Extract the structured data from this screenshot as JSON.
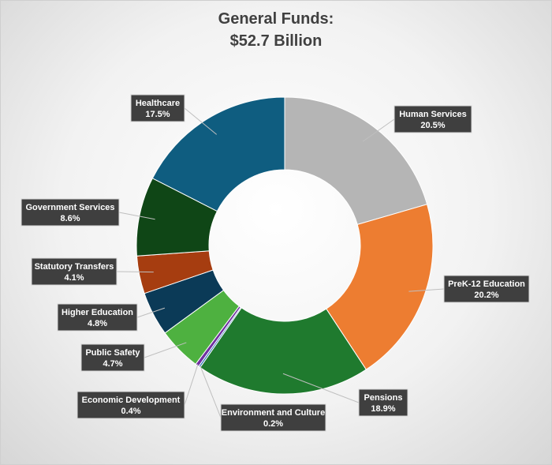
{
  "chart_data": {
    "type": "pie",
    "subtype": "donut",
    "title_lines": [
      "General Funds:",
      "$52.7 Billion"
    ],
    "legend": "none",
    "slices": [
      {
        "label": "Human Services",
        "value": 20.5,
        "value_label": "20.5%",
        "color": "#b5b5b5"
      },
      {
        "label": "PreK-12 Education",
        "value": 20.2,
        "value_label": "20.2%",
        "color": "#ed7d31"
      },
      {
        "label": "Pensions",
        "value": 18.9,
        "value_label": "18.9%",
        "color": "#1f7a2e"
      },
      {
        "label": "Environment and Culture",
        "value": 0.2,
        "value_label": "0.2%",
        "color": "#2e75b6"
      },
      {
        "label": "Economic Development",
        "value": 0.4,
        "value_label": "0.4%",
        "color": "#7030a0"
      },
      {
        "label": "Public Safety",
        "value": 4.7,
        "value_label": "4.7%",
        "color": "#4eb140"
      },
      {
        "label": "Higher Education",
        "value": 4.8,
        "value_label": "4.8%",
        "color": "#0b3a57"
      },
      {
        "label": "Statutory Transfers",
        "value": 4.1,
        "value_label": "4.1%",
        "color": "#a63d10"
      },
      {
        "label": "Government Services",
        "value": 8.6,
        "value_label": "8.6%",
        "color": "#0f4616"
      },
      {
        "label": "Healthcare",
        "value": 17.5,
        "value_label": "17.5%",
        "color": "#0f5d80"
      }
    ]
  }
}
